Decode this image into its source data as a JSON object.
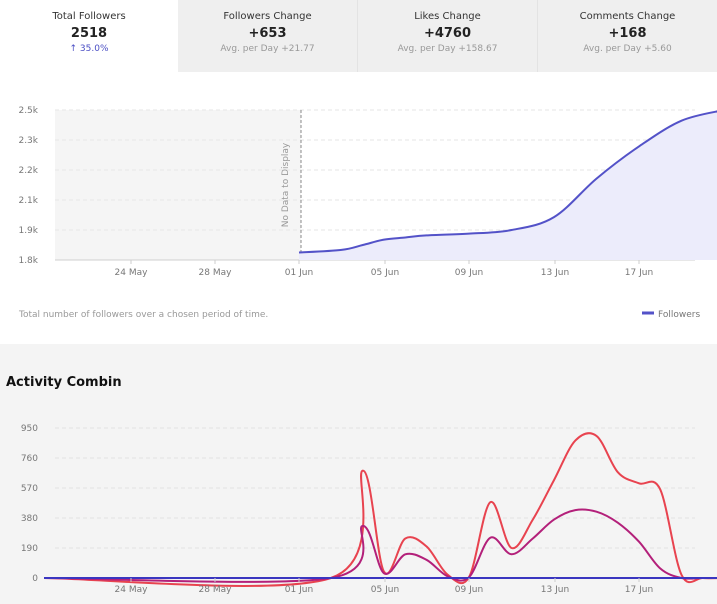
{
  "stats": [
    {
      "label": "Total Followers",
      "value": "2518",
      "sub": "↑ 35.0%",
      "active": true
    },
    {
      "label": "Followers Change",
      "value": "+653",
      "sub": "Avg. per Day +21.77",
      "active": false
    },
    {
      "label": "Likes Change",
      "value": "+4760",
      "sub": "Avg. per Day +158.67",
      "active": false
    },
    {
      "label": "Comments Change",
      "value": "+168",
      "sub": "Avg. per Day +5.60",
      "active": false
    }
  ],
  "followers_chart": {
    "no_data_label": "No Data to Display",
    "caption": "Total number of followers over a chosen period of time.",
    "legend_label": "Followers",
    "series_color": "#5352c8"
  },
  "activity": {
    "title": "Activity Combin",
    "line_color_likes": "#e8434f",
    "line_color_comments": "#b3207a",
    "line_color_followers": "#3a36c0"
  },
  "chart_data": [
    {
      "type": "area",
      "title": "",
      "xlabel": "",
      "ylabel": "",
      "x_ticks": [
        "24 May",
        "28 May",
        "01 Jun",
        "05 Jun",
        "09 Jun",
        "13 Jun",
        "17 Jun"
      ],
      "y_ticks": [
        "1.8k",
        "1.9k",
        "2.1k",
        "2.2k",
        "2.3k",
        "2.5k"
      ],
      "ylim": [
        1800,
        2500
      ],
      "x_range_days": [
        -12,
        20
      ],
      "legend": "bottom-right",
      "grid": true,
      "series": [
        {
          "name": "Followers",
          "x_days_from_01_Jun": [
            0,
            2,
            3,
            4,
            5,
            6,
            8,
            10,
            12,
            14,
            16,
            18,
            20
          ],
          "values": [
            1835,
            1847,
            1870,
            1895,
            1905,
            1915,
            1923,
            1940,
            2000,
            2180,
            2330,
            2450,
            2500
          ]
        }
      ]
    },
    {
      "type": "line",
      "title": "Activity Combin",
      "x_ticks": [
        "24 May",
        "28 May",
        "01 Jun",
        "05 Jun",
        "09 Jun",
        "13 Jun",
        "17 Jun"
      ],
      "y_ticks": [
        "0",
        "190",
        "380",
        "570",
        "760",
        "950"
      ],
      "ylim": [
        0,
        950
      ],
      "grid": true,
      "series": [
        {
          "x_days_from_01_Jun": [
            -12,
            1.5,
            3,
            4,
            5,
            6,
            7,
            8,
            9,
            10,
            11,
            12,
            13,
            14,
            15,
            16,
            17,
            18,
            19,
            20
          ],
          "values": [
            0,
            0,
            680,
            40,
            250,
            200,
            20,
            5,
            480,
            190,
            370,
            620,
            870,
            900,
            670,
            600,
            560,
            20,
            0,
            0
          ]
        },
        {
          "x_days_from_01_Jun": [
            -12,
            1.5,
            3,
            4,
            5,
            6,
            7,
            8,
            9,
            10,
            11,
            12,
            13,
            14,
            15,
            16,
            17,
            18,
            19,
            20
          ],
          "values": [
            0,
            0,
            330,
            30,
            150,
            115,
            10,
            5,
            255,
            150,
            250,
            370,
            430,
            420,
            350,
            230,
            60,
            0,
            0,
            0
          ]
        },
        {
          "x_days_from_01_Jun": [
            -12,
            20
          ],
          "values": [
            0,
            0
          ]
        }
      ]
    }
  ]
}
